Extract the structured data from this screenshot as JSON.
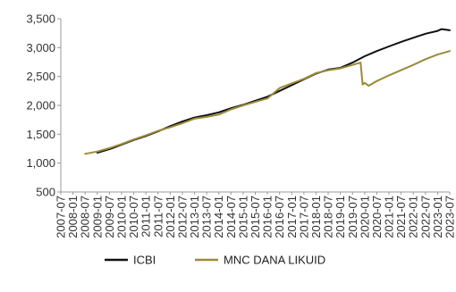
{
  "chart_data": {
    "type": "line",
    "title": "",
    "xlabel": "",
    "ylabel": "",
    "ylim": [
      500,
      3500
    ],
    "yticks": [
      500,
      1000,
      1500,
      2000,
      2500,
      3000,
      3500
    ],
    "ytick_labels": [
      "500",
      "1,000",
      "1,500",
      "2,000",
      "2,500",
      "3,000",
      "3,500"
    ],
    "xlim": [
      "2007-07",
      "2023-07"
    ],
    "xtick_labels": [
      "2007-07",
      "2008-01",
      "2008-07",
      "2009-01",
      "2009-07",
      "2010-01",
      "2010-07",
      "2011-01",
      "2011-07",
      "2012-01",
      "2012-07",
      "2013-01",
      "2013-07",
      "2014-01",
      "2014-07",
      "2015-01",
      "2015-07",
      "2016-01",
      "2016-07",
      "2017-01",
      "2017-07",
      "2018-01",
      "2018-07",
      "2019-01",
      "2019-07",
      "2020-01",
      "2020-07",
      "2021-01",
      "2021-07",
      "2022-01",
      "2022-07",
      "2023-01",
      "2023-07"
    ],
    "grid": false,
    "legend": "bottom",
    "series": [
      {
        "name": "ICBI",
        "color": "#111111",
        "points": [
          [
            "2009-01",
            1180
          ],
          [
            "2009-07",
            1240
          ],
          [
            "2010-01",
            1320
          ],
          [
            "2010-07",
            1400
          ],
          [
            "2011-01",
            1470
          ],
          [
            "2011-07",
            1550
          ],
          [
            "2012-01",
            1640
          ],
          [
            "2012-07",
            1720
          ],
          [
            "2013-01",
            1790
          ],
          [
            "2013-07",
            1830
          ],
          [
            "2014-01",
            1880
          ],
          [
            "2014-07",
            1950
          ],
          [
            "2015-01",
            2010
          ],
          [
            "2015-07",
            2080
          ],
          [
            "2016-01",
            2150
          ],
          [
            "2016-07",
            2250
          ],
          [
            "2017-01",
            2350
          ],
          [
            "2017-07",
            2450
          ],
          [
            "2018-01",
            2550
          ],
          [
            "2018-07",
            2620
          ],
          [
            "2019-01",
            2650
          ],
          [
            "2019-07",
            2740
          ],
          [
            "2020-01",
            2850
          ],
          [
            "2020-07",
            2940
          ],
          [
            "2021-01",
            3020
          ],
          [
            "2021-07",
            3100
          ],
          [
            "2022-01",
            3170
          ],
          [
            "2022-07",
            3240
          ],
          [
            "2023-01",
            3290
          ],
          [
            "2023-03",
            3320
          ],
          [
            "2023-07",
            3300
          ]
        ]
      },
      {
        "name": "MNC DANA LIKUID",
        "color": "#9b8a3a",
        "points": [
          [
            "2008-07",
            1160
          ],
          [
            "2009-01",
            1200
          ],
          [
            "2009-07",
            1260
          ],
          [
            "2010-01",
            1330
          ],
          [
            "2010-07",
            1410
          ],
          [
            "2011-01",
            1480
          ],
          [
            "2011-07",
            1560
          ],
          [
            "2012-01",
            1620
          ],
          [
            "2012-07",
            1690
          ],
          [
            "2013-01",
            1770
          ],
          [
            "2013-07",
            1800
          ],
          [
            "2014-01",
            1840
          ],
          [
            "2014-07",
            1930
          ],
          [
            "2015-01",
            2000
          ],
          [
            "2015-07",
            2060
          ],
          [
            "2016-01",
            2120
          ],
          [
            "2016-07",
            2300
          ],
          [
            "2017-01",
            2380
          ],
          [
            "2017-07",
            2460
          ],
          [
            "2018-01",
            2560
          ],
          [
            "2018-07",
            2610
          ],
          [
            "2019-01",
            2640
          ],
          [
            "2019-07",
            2700
          ],
          [
            "2019-11",
            2740
          ],
          [
            "2019-12",
            2360
          ],
          [
            "2020-01",
            2390
          ],
          [
            "2020-03",
            2340
          ],
          [
            "2020-07",
            2420
          ],
          [
            "2021-01",
            2520
          ],
          [
            "2021-07",
            2610
          ],
          [
            "2022-01",
            2700
          ],
          [
            "2022-07",
            2800
          ],
          [
            "2023-01",
            2880
          ],
          [
            "2023-07",
            2940
          ]
        ]
      }
    ]
  }
}
